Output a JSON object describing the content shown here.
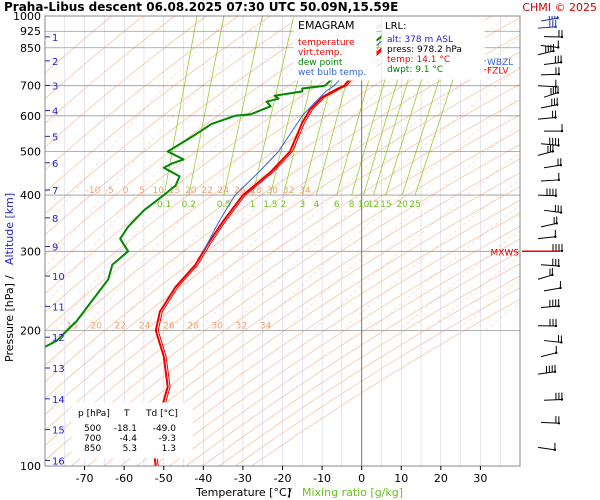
{
  "header": {
    "title": "Praha-Libus   descent   06.08.2025 07:30 UTC  50.09N,15.59E",
    "copyright": "CHMI © 2025"
  },
  "legend": {
    "title": "EMAGRAM",
    "items": [
      {
        "label": "temperature",
        "color": "#ee0000"
      },
      {
        "label": "virt.temp.",
        "color": "#ee0000"
      },
      {
        "label": "dew point",
        "color": "#008800"
      },
      {
        "label": "wet bulb temp.",
        "color": "#3366dd"
      }
    ]
  },
  "lrl": {
    "title": "LRL:",
    "lines": [
      {
        "text": "alt: 378 m ASL",
        "color": "#2222cc"
      },
      {
        "text": "press: 978.2 hPa",
        "color": "#000000"
      },
      {
        "text": "temp: 14.1 °C",
        "color": "#ee0000"
      },
      {
        "text": "dwpt: 9.1 °C",
        "color": "#008800"
      }
    ]
  },
  "table": {
    "headers": [
      "p [hPa]",
      "T",
      "Td [°C]"
    ],
    "rows": [
      [
        "500",
        "-18.1",
        "-49.0"
      ],
      [
        "700",
        "-4.4",
        "-9.3"
      ],
      [
        "850",
        "5.3",
        "1.3"
      ]
    ]
  },
  "levels": {
    "mxws": "MXWS",
    "fzlv": "FZLV",
    "wbzl": "WBZL"
  },
  "axes": {
    "xlabel_temp": "Temperature [°C]",
    "xlabel_sep": "/",
    "xlabel_mix": "Mixing ratio [g/kg]",
    "ylabel_p": "Pressure [hPa]",
    "ylabel_sep": "/",
    "ylabel_alt": "Altitude [km]"
  },
  "colors": {
    "temperature": "#ee0000",
    "dewpoint": "#008800",
    "wetbulb": "#3366dd",
    "isotherm": "#c8c8e8",
    "dry_adiabat": "#f4b48c",
    "mixing_ratio": "#99cc33",
    "altitude": "#2222cc",
    "wind": "#000000"
  },
  "chart_data": {
    "type": "line",
    "xlim": [
      -80,
      40
    ],
    "ylim_hpa": [
      1000,
      100
    ],
    "x_ticks": [
      -70,
      -60,
      -50,
      -40,
      -30,
      -20,
      -10,
      0,
      10,
      20,
      30
    ],
    "p_ticks": [
      100,
      200,
      300,
      400,
      500,
      600,
      700,
      850,
      925,
      1000
    ],
    "alt_ticks_km": [
      1,
      2,
      3,
      4,
      5,
      6,
      7,
      8,
      9,
      10,
      11,
      12,
      13,
      14,
      15,
      16
    ],
    "theta_labels": [
      {
        "row_hpa": 200,
        "labels": [
          "15",
          "20",
          "22",
          "24",
          "26",
          "28",
          "30",
          "32",
          "34"
        ]
      },
      {
        "row_hpa": 400,
        "labels": [
          "-10",
          "-5",
          "0",
          "5",
          "10",
          "15",
          "20",
          "22",
          "24",
          "26",
          "28",
          "30",
          "32",
          "34"
        ]
      }
    ],
    "mixing_labels": [
      "0.1",
      "0.2",
      "0.5",
      "1",
      "1.5",
      "2",
      "3",
      "4",
      "6",
      "8",
      "10",
      "12",
      "15",
      "20",
      "25"
    ],
    "series": [
      {
        "name": "temperature",
        "points": [
          [
            14.1,
            978
          ],
          [
            13,
            960
          ],
          [
            9,
            900
          ],
          [
            5.3,
            850
          ],
          [
            2,
            800
          ],
          [
            -1,
            760
          ],
          [
            -4.4,
            700
          ],
          [
            -6,
            690
          ],
          [
            -10,
            660
          ],
          [
            -13,
            620
          ],
          [
            -15,
            580
          ],
          [
            -18.1,
            500
          ],
          [
            -23,
            450
          ],
          [
            -30,
            400
          ],
          [
            -35,
            350
          ],
          [
            -39,
            310
          ],
          [
            -42,
            280
          ],
          [
            -47,
            250
          ],
          [
            -51,
            220
          ],
          [
            -52,
            200
          ],
          [
            -50,
            175
          ],
          [
            -49,
            150
          ],
          [
            -51,
            130
          ],
          [
            -53,
            115
          ],
          [
            -52,
            100
          ]
        ]
      },
      {
        "name": "dew point",
        "points": [
          [
            9.1,
            978
          ],
          [
            8,
            960
          ],
          [
            5,
            900
          ],
          [
            1.3,
            850
          ],
          [
            -2,
            800
          ],
          [
            -4,
            770
          ],
          [
            -6,
            745
          ],
          [
            -9.3,
            700
          ],
          [
            -15,
            690
          ],
          [
            -15,
            680
          ],
          [
            -22,
            665
          ],
          [
            -21,
            655
          ],
          [
            -24,
            645
          ],
          [
            -23,
            630
          ],
          [
            -28,
            605
          ],
          [
            -32,
            600
          ],
          [
            -38,
            575
          ],
          [
            -42,
            545
          ],
          [
            -45,
            525
          ],
          [
            -49,
            500
          ],
          [
            -45,
            480
          ],
          [
            -48,
            470
          ],
          [
            -50,
            460
          ],
          [
            -46,
            440
          ],
          [
            -47,
            420
          ],
          [
            -50,
            400
          ],
          [
            -55,
            370
          ],
          [
            -59,
            340
          ],
          [
            -61,
            320
          ],
          [
            -59,
            300
          ],
          [
            -63,
            280
          ],
          [
            -64,
            260
          ],
          [
            -67,
            240
          ],
          [
            -72,
            210
          ],
          [
            -77,
            190
          ],
          [
            -82,
            180
          ]
        ]
      },
      {
        "name": "wet bulb temp.",
        "points": [
          [
            11,
            978
          ],
          [
            10,
            960
          ],
          [
            6.5,
            900
          ],
          [
            3,
            850
          ],
          [
            -0.5,
            800
          ],
          [
            -3,
            760
          ],
          [
            -7,
            700
          ],
          [
            -9,
            680
          ],
          [
            -12,
            640
          ],
          [
            -15,
            600
          ],
          [
            -21,
            500
          ],
          [
            -26,
            450
          ],
          [
            -32,
            400
          ],
          [
            -36,
            350
          ],
          [
            -40,
            300
          ]
        ]
      }
    ],
    "annotations": [
      {
        "label": "MXWS",
        "p_hpa": 300
      },
      {
        "label": "FZLV",
        "p_hpa": 760
      },
      {
        "label": "WBZL",
        "p_hpa": 795
      }
    ],
    "wind_levels_hpa": [
      110,
      125,
      140,
      160,
      175,
      190,
      205,
      225,
      245,
      260,
      280,
      300,
      320,
      340,
      370,
      400,
      430,
      460,
      490,
      520,
      555,
      590,
      625,
      660,
      700,
      740,
      780,
      820,
      860,
      900,
      940,
      975
    ]
  }
}
